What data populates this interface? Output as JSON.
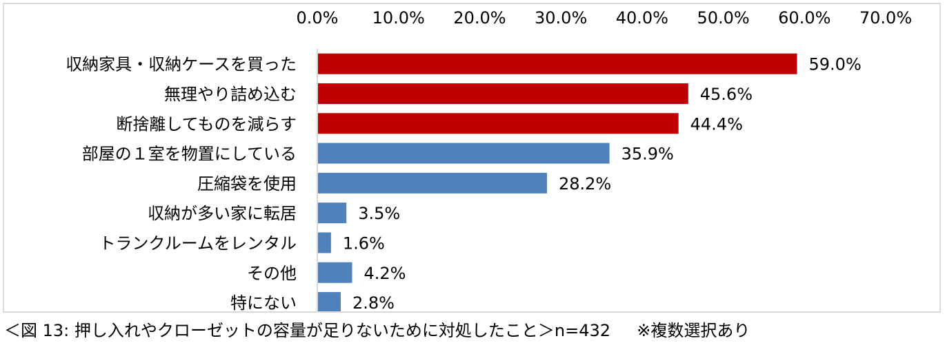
{
  "chart_data": {
    "type": "bar",
    "orientation": "horizontal",
    "categories": [
      "収納家具・収納ケースを買った",
      "無理やり詰め込む",
      "断捨離してものを減らす",
      "部屋の１室を物置にしている",
      "圧縮袋を使用",
      "収納が多い家に転居",
      "トランクルームをレンタル",
      "その他",
      "特にない"
    ],
    "values": [
      59.0,
      45.6,
      44.4,
      35.9,
      28.2,
      3.5,
      1.6,
      4.2,
      2.8
    ],
    "data_labels": [
      "59.0%",
      "45.6%",
      "44.4%",
      "35.9%",
      "28.2%",
      "3.5%",
      "1.6%",
      "4.2%",
      "2.8%"
    ],
    "bar_colors": [
      "#c00000",
      "#c00000",
      "#c00000",
      "#4f81bd",
      "#4f81bd",
      "#4f81bd",
      "#4f81bd",
      "#4f81bd",
      "#4f81bd"
    ],
    "xlim": [
      0,
      70
    ],
    "xticks": [
      0,
      10,
      20,
      30,
      40,
      50,
      60,
      70
    ],
    "xtick_labels": [
      "0.0%",
      "10.0%",
      "20.0%",
      "30.0%",
      "40.0%",
      "50.0%",
      "60.0%",
      "70.0%"
    ],
    "x_axis_position": "top",
    "grid": false,
    "legend": "none"
  },
  "caption": {
    "figure": "＜図 13:",
    "text": "押し入れやクローゼットの容量が足りないために対処したこと＞n=432",
    "note": "※複数選択あり"
  }
}
